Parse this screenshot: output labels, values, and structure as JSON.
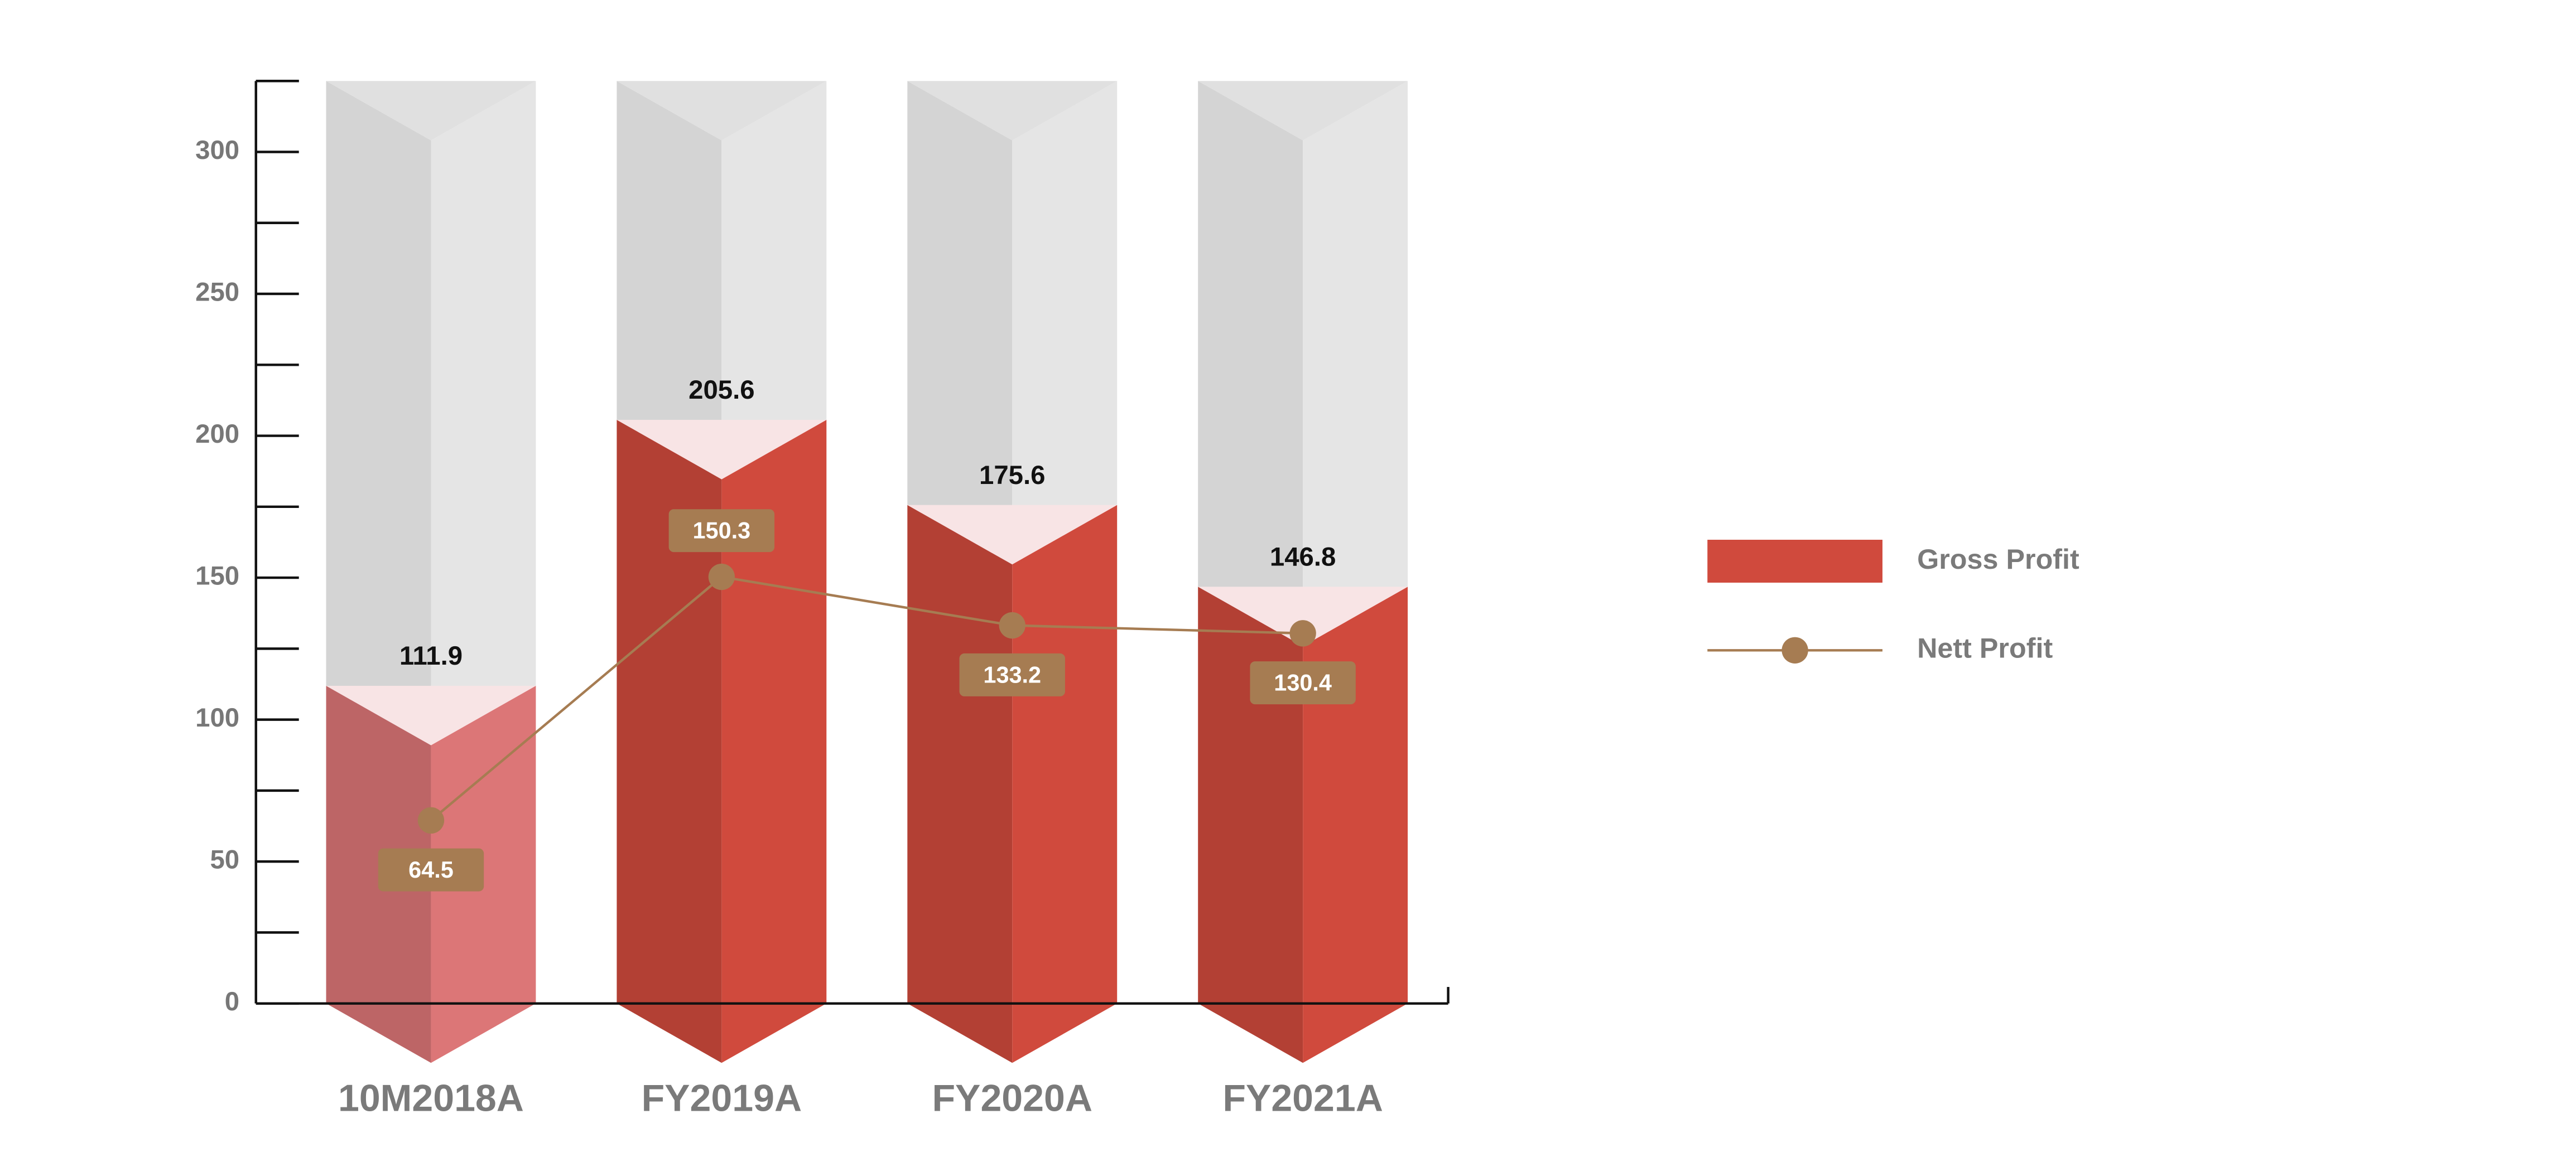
{
  "chart_data": {
    "type": "bar",
    "categories": [
      "10M2018A",
      "FY2019A",
      "FY2020A",
      "FY2021A"
    ],
    "series": [
      {
        "name": "Gross Profit",
        "type": "bar",
        "color": "#d04a3d",
        "colors": [
          "#dc7677",
          "#d04a3d",
          "#d04a3d",
          "#d04a3d"
        ],
        "values": [
          111.9,
          205.6,
          175.6,
          146.8
        ]
      },
      {
        "name": "Nett Profit",
        "type": "line",
        "color": "#a67c52",
        "values": [
          64.5,
          150.3,
          133.2,
          130.4
        ]
      }
    ],
    "ylim": [
      0,
      325
    ],
    "yticks": [
      0,
      50,
      100,
      150,
      200,
      250,
      300
    ],
    "minor_yticks": [
      25,
      75,
      125,
      175,
      225,
      275,
      325
    ],
    "legend": "right"
  }
}
